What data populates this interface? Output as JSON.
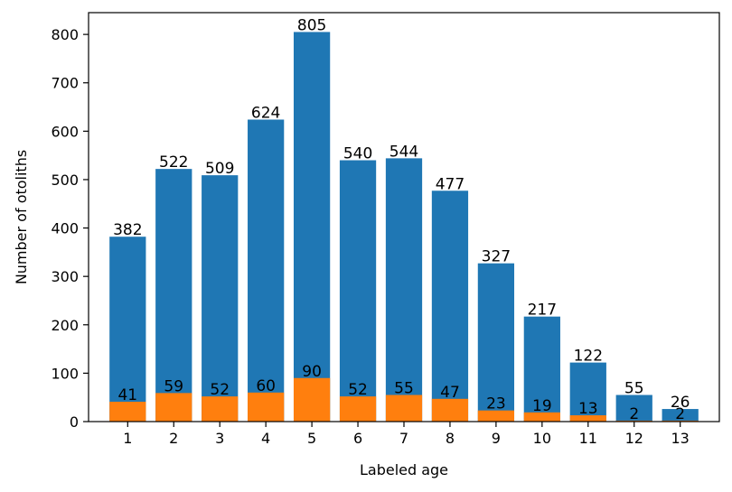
{
  "chart_data": {
    "type": "bar",
    "categories": [
      "1",
      "2",
      "3",
      "4",
      "5",
      "6",
      "7",
      "8",
      "9",
      "10",
      "11",
      "12",
      "13"
    ],
    "xlabel": "Labeled age",
    "ylabel": "Number of otoliths",
    "ylim": [
      0,
      845
    ],
    "yticks": [
      0,
      100,
      200,
      300,
      400,
      500,
      600,
      700,
      800
    ],
    "grid": false,
    "overlay": true,
    "series": [
      {
        "color": "#1f77b4",
        "values": [
          382,
          522,
          509,
          624,
          805,
          540,
          544,
          477,
          327,
          217,
          122,
          55,
          26
        ]
      },
      {
        "color": "#ff7f0e",
        "values": [
          41,
          59,
          52,
          60,
          90,
          52,
          55,
          47,
          23,
          19,
          13,
          2,
          2
        ]
      }
    ]
  }
}
